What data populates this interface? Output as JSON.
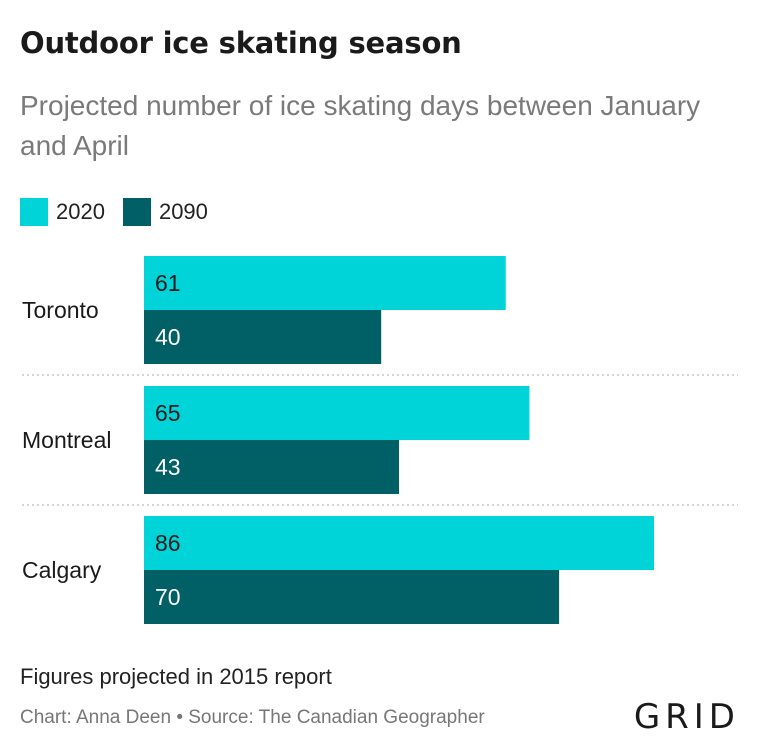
{
  "chart_data": {
    "type": "bar",
    "orientation": "horizontal",
    "title": "Outdoor ice skating season",
    "subtitle": "Projected number of ice skating days between January and April",
    "categories": [
      "Toronto",
      "Montreal",
      "Calgary"
    ],
    "series": [
      {
        "name": "2020",
        "color": "#00d4d8",
        "values": [
          61,
          65,
          86
        ]
      },
      {
        "name": "2090",
        "color": "#006066",
        "values": [
          40,
          43,
          70
        ]
      }
    ],
    "xlim": [
      0,
      100
    ],
    "grid": false,
    "legend_position": "top-left",
    "data_labels": "inside-left",
    "note": "Figures projected in 2015 report",
    "credits": "Chart: Anna Deen • Source: The Canadian Geographer"
  },
  "logo": "GRID"
}
